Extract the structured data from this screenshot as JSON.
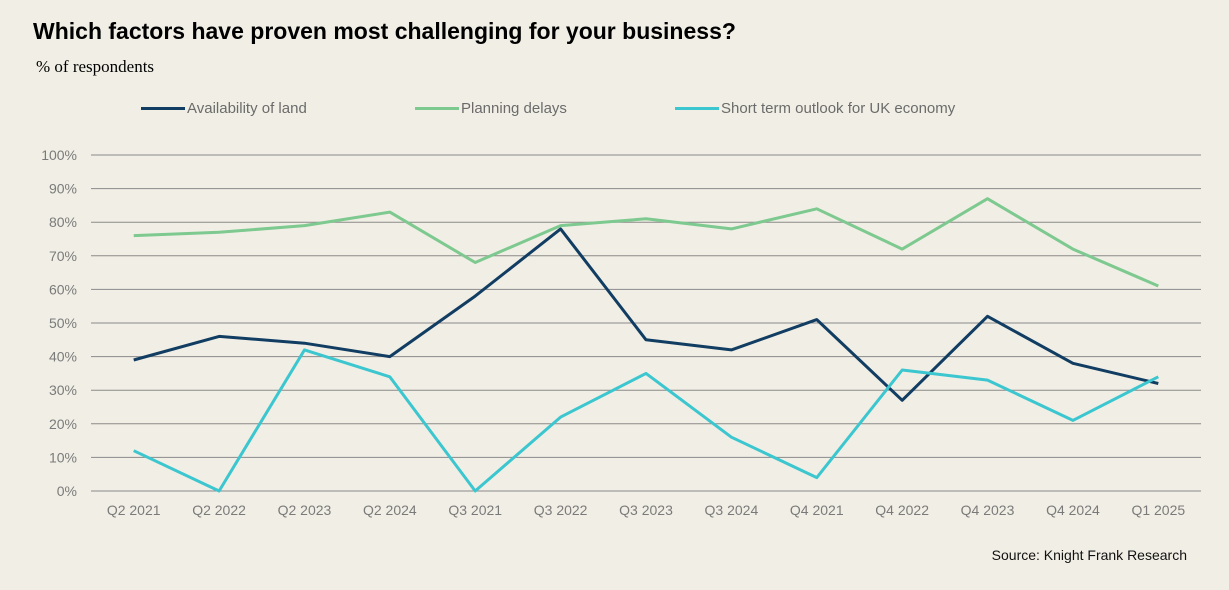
{
  "chart_data": {
    "type": "line",
    "title": "Which factors have proven most challenging for your business?",
    "subtitle": "% of respondents",
    "source": "Source: Knight Frank Research",
    "xlabel": "",
    "ylabel": "",
    "ylim": [
      0,
      100
    ],
    "y_ticks": [
      0,
      10,
      20,
      30,
      40,
      50,
      60,
      70,
      80,
      90,
      100
    ],
    "y_tick_labels": [
      "0%",
      "10%",
      "20%",
      "30%",
      "40%",
      "50%",
      "60%",
      "70%",
      "80%",
      "90%",
      "100%"
    ],
    "grid": true,
    "legend_position": "top",
    "categories": [
      "Q2 2021",
      "Q2 2022",
      "Q2 2023",
      "Q2 2024",
      "Q3 2021",
      "Q3 2022",
      "Q3 2023",
      "Q3 2024",
      "Q4 2021",
      "Q4 2022",
      "Q4 2023",
      "Q4 2024",
      "Q1 2025"
    ],
    "series": [
      {
        "name": "Availability of land",
        "color": "#123d63",
        "values": [
          39,
          46,
          44,
          40,
          58,
          78,
          45,
          42,
          51,
          27,
          52,
          38,
          32
        ]
      },
      {
        "name": "Planning delays",
        "color": "#7dc98f",
        "values": [
          76,
          77,
          79,
          83,
          68,
          79,
          81,
          78,
          84,
          72,
          87,
          72,
          61
        ]
      },
      {
        "name": "Short term outlook for UK economy",
        "color": "#3cc6cf",
        "values": [
          12,
          0,
          42,
          34,
          0,
          22,
          35,
          16,
          4,
          36,
          33,
          21,
          34
        ]
      }
    ]
  }
}
